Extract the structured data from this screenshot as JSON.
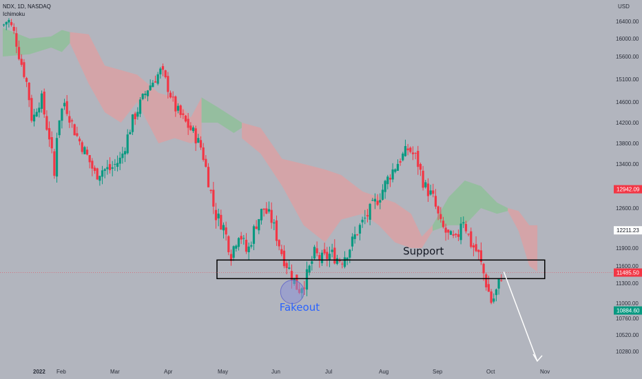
{
  "header": {
    "symbol_line": "NDX, 1D, NASDAQ",
    "indicator": "Ichimoku",
    "currency": "USD"
  },
  "colors": {
    "background": "#b2b5be",
    "up": "#089981",
    "down": "#f23645",
    "cloud_bull": "#8fbf9a",
    "cloud_bear": "#d9a1a5",
    "fakeout_circle": "#8a8fd6",
    "fakeout_text": "#2962ff"
  },
  "price_badges": [
    {
      "value": 12942.09,
      "label": "12942.09",
      "bg": "#f23645",
      "fg": "#ffffff"
    },
    {
      "value": 12211.23,
      "label": "12211.23",
      "bg": "#ffffff",
      "fg": "#131722"
    },
    {
      "value": 11485.5,
      "label": "11485.50",
      "bg": "#f23645",
      "fg": "#ffffff"
    },
    {
      "value": 10884.6,
      "label": "10884.60",
      "bg": "#089981",
      "fg": "#ffffff"
    }
  ],
  "annotations": {
    "support": "Support",
    "fakeout": "Fakeout"
  },
  "chart_data": {
    "type": "candlestick",
    "title": "NDX, 1D, NASDAQ",
    "ylabel": "USD",
    "ylim": [
      10160,
      16560
    ],
    "y_ticks": [
      16400,
      16000,
      15600,
      15100,
      14600,
      14200,
      13800,
      13400,
      12600,
      11900,
      11600,
      11300,
      11000,
      10760,
      10520,
      10280
    ],
    "x_labels": [
      {
        "label": "2022",
        "month": 0
      },
      {
        "label": "Feb",
        "month": 1
      },
      {
        "label": "Mar",
        "month": 2
      },
      {
        "label": "Apr",
        "month": 3
      },
      {
        "label": "May",
        "month": 4
      },
      {
        "label": "Jun",
        "month": 5
      },
      {
        "label": "Jul",
        "month": 6
      },
      {
        "label": "Aug",
        "month": 7
      },
      {
        "label": "Sep",
        "month": 8
      },
      {
        "label": "Oct",
        "month": 9
      },
      {
        "label": "Nov",
        "month": 10
      }
    ],
    "close_path": [
      [
        0,
        16300
      ],
      [
        0.1,
        16450
      ],
      [
        0.22,
        16100
      ],
      [
        0.3,
        15650
      ],
      [
        0.45,
        15000
      ],
      [
        0.55,
        14200
      ],
      [
        0.63,
        14500
      ],
      [
        0.72,
        14700
      ],
      [
        0.8,
        14200
      ],
      [
        0.9,
        13800
      ],
      [
        0.95,
        13000
      ],
      [
        1.02,
        14200
      ],
      [
        1.15,
        14600
      ],
      [
        1.35,
        14000
      ],
      [
        1.55,
        13600
      ],
      [
        1.72,
        13200
      ],
      [
        1.85,
        13300
      ],
      [
        2.0,
        13300
      ],
      [
        2.2,
        13500
      ],
      [
        2.4,
        14200
      ],
      [
        2.7,
        14900
      ],
      [
        2.95,
        15300
      ],
      [
        3.05,
        15000
      ],
      [
        3.2,
        14500
      ],
      [
        3.4,
        14200
      ],
      [
        3.55,
        14000
      ],
      [
        3.7,
        13700
      ],
      [
        3.85,
        13000
      ],
      [
        3.95,
        12500
      ],
      [
        4.1,
        12300
      ],
      [
        4.25,
        11800
      ],
      [
        4.4,
        12200
      ],
      [
        4.55,
        11800
      ],
      [
        4.7,
        12300
      ],
      [
        4.85,
        12600
      ],
      [
        5.0,
        12400
      ],
      [
        5.2,
        11800
      ],
      [
        5.35,
        11500
      ],
      [
        5.5,
        11200
      ],
      [
        5.65,
        11400
      ],
      [
        5.8,
        11800
      ],
      [
        5.95,
        11700
      ],
      [
        6.1,
        11800
      ],
      [
        6.3,
        11700
      ],
      [
        6.45,
        11900
      ],
      [
        6.6,
        12200
      ],
      [
        6.8,
        12500
      ],
      [
        7.0,
        12800
      ],
      [
        7.2,
        13200
      ],
      [
        7.4,
        13500
      ],
      [
        7.55,
        13700
      ],
      [
        7.7,
        13500
      ],
      [
        7.85,
        13000
      ],
      [
        8.0,
        12800
      ],
      [
        8.15,
        12300
      ],
      [
        8.3,
        12100
      ],
      [
        8.45,
        12000
      ],
      [
        8.55,
        12500
      ],
      [
        8.7,
        12000
      ],
      [
        8.85,
        11800
      ],
      [
        9.0,
        11300
      ],
      [
        9.1,
        11000
      ],
      [
        9.2,
        11200
      ],
      [
        9.3,
        11500
      ]
    ],
    "cloud_segments": [
      {
        "type": "bull",
        "points": [
          [
            0,
            15600,
            16250
          ],
          [
            0.5,
            15650,
            16000
          ],
          [
            0.9,
            15800,
            16050
          ],
          [
            1.1,
            15700,
            16200
          ],
          [
            1.25,
            15900,
            16150
          ]
        ]
      },
      {
        "type": "bear",
        "points": [
          [
            1.25,
            15900,
            16150
          ],
          [
            1.6,
            15000,
            16100
          ],
          [
            1.9,
            14400,
            15400
          ],
          [
            2.2,
            14200,
            15300
          ],
          [
            2.5,
            14600,
            15200
          ],
          [
            2.9,
            13800,
            14800
          ],
          [
            3.2,
            13900,
            14700
          ],
          [
            3.5,
            13800,
            14300
          ],
          [
            3.7,
            13900,
            14700
          ]
        ]
      },
      {
        "type": "bull",
        "points": [
          [
            3.7,
            14200,
            14700
          ],
          [
            4.0,
            14200,
            14500
          ],
          [
            4.3,
            14000,
            14300
          ],
          [
            4.45,
            14100,
            14200
          ]
        ]
      },
      {
        "type": "bear",
        "points": [
          [
            4.45,
            13900,
            14200
          ],
          [
            4.8,
            13600,
            14100
          ],
          [
            5.2,
            13000,
            13500
          ],
          [
            5.6,
            12300,
            13400
          ],
          [
            6.0,
            12000,
            13300
          ],
          [
            6.3,
            12400,
            13200
          ],
          [
            6.7,
            12500,
            12900
          ],
          [
            7.0,
            12300,
            12800
          ],
          [
            7.3,
            12000,
            12700
          ],
          [
            7.6,
            11900,
            12500
          ],
          [
            7.8,
            11900,
            12100
          ],
          [
            8.0,
            12200,
            12300
          ]
        ]
      },
      {
        "type": "bull",
        "points": [
          [
            8.0,
            12200,
            12300
          ],
          [
            8.3,
            12300,
            12800
          ],
          [
            8.6,
            12300,
            13100
          ],
          [
            8.9,
            12600,
            13000
          ],
          [
            9.2,
            12500,
            12700
          ],
          [
            9.4,
            12550,
            12600
          ]
        ]
      },
      {
        "type": "bear",
        "points": [
          [
            9.4,
            12550,
            12600
          ],
          [
            9.6,
            12200,
            12550
          ],
          [
            9.8,
            11600,
            12300
          ],
          [
            9.95,
            11500,
            12300
          ]
        ]
      }
    ],
    "support_zone": {
      "low": 11380,
      "high": 11700,
      "from_month": 4.0,
      "to_month": 10.1
    }
  }
}
